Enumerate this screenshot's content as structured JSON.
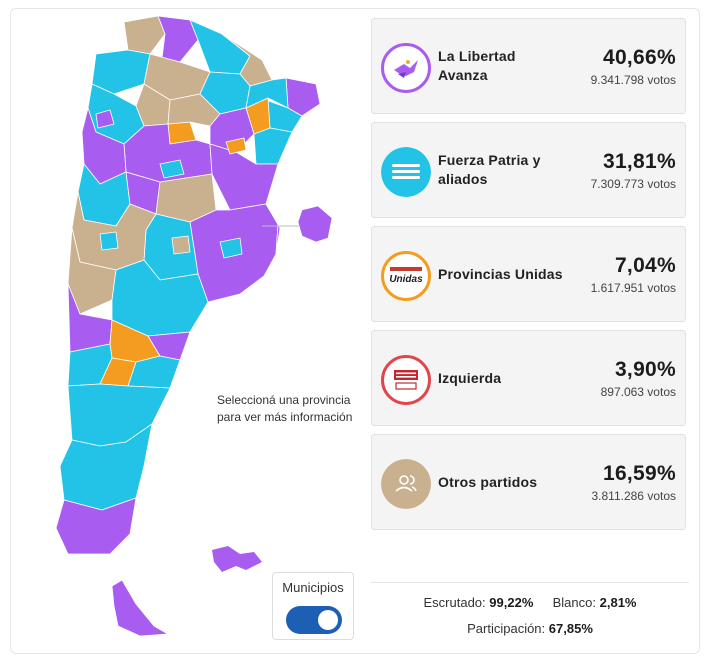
{
  "colors": {
    "la_libertad_avanza": "#a95cf0",
    "fuerza_patria": "#22c3e6",
    "provincias_unidas": "#f39c1f",
    "izquierda": "#e0474c",
    "otros": "#c9b08e",
    "toggle_on": "#1e5fb6"
  },
  "map": {
    "hint_line1": "Seleccioná una provincia",
    "hint_line2": "para ver más información",
    "municipios_label": "Municipios",
    "municipios_enabled": true
  },
  "parties": [
    {
      "name_line1": "La Libertad",
      "name_line2": "Avanza",
      "pct": "40,66%",
      "votes": "9.341.798 votos",
      "icon": "libertad-avanza-logo"
    },
    {
      "name_line1": "Fuerza Patria y",
      "name_line2": "aliados",
      "pct": "31,81%",
      "votes": "7.309.773 votos",
      "icon": "fuerza-patria-logo"
    },
    {
      "name_line1": "Provincias Unidas",
      "name_line2": "",
      "pct": "7,04%",
      "votes": "1.617.951 votos",
      "icon": "provincias-unidas-logo",
      "logo_text": "Unidas"
    },
    {
      "name_line1": "Izquierda",
      "name_line2": "",
      "pct": "3,90%",
      "votes": "897.063 votos",
      "icon": "frente-izquierda-logo"
    },
    {
      "name_line1": "Otros partidos",
      "name_line2": "",
      "pct": "16,59%",
      "votes": "3.811.286 votos",
      "icon": "people-icon"
    }
  ],
  "summary": {
    "escrutado_label": "Escrutado:",
    "escrutado_value": "99,22%",
    "blanco_label": "Blanco:",
    "blanco_value": "2,81%",
    "participacion_label": "Participación:",
    "participacion_value": "67,85%"
  }
}
